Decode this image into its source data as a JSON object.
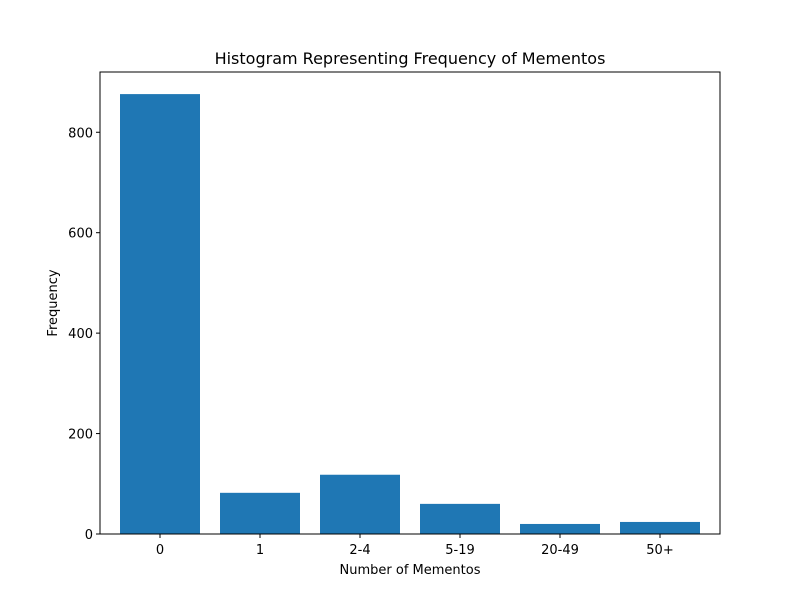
{
  "chart_data": {
    "type": "bar",
    "title": "Histogram Representing Frequency of Mementos",
    "xlabel": "Number of Mementos",
    "ylabel": "Frequency",
    "categories": [
      "0",
      "1",
      "2-4",
      "5-19",
      "20-49",
      "50+"
    ],
    "values": [
      876,
      82,
      118,
      60,
      20,
      24
    ],
    "ylim": [
      0,
      920
    ],
    "yticks": [
      "0",
      "200",
      "400",
      "600",
      "800"
    ],
    "grid": false,
    "bar_color": "#1f77b4"
  }
}
